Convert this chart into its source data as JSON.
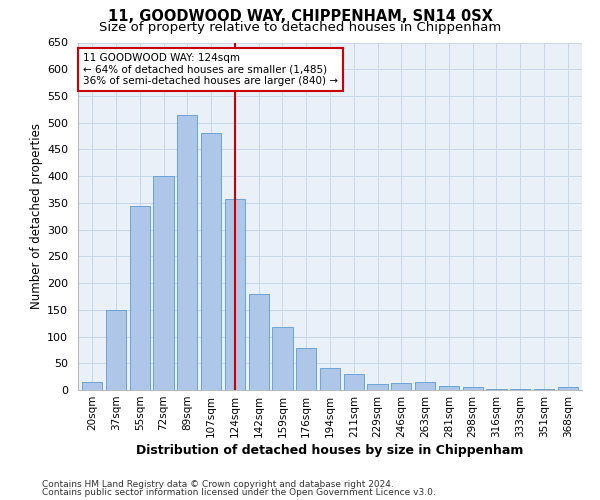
{
  "title1": "11, GOODWOOD WAY, CHIPPENHAM, SN14 0SX",
  "title2": "Size of property relative to detached houses in Chippenham",
  "xlabel": "Distribution of detached houses by size in Chippenham",
  "ylabel": "Number of detached properties",
  "categories": [
    "20sqm",
    "37sqm",
    "55sqm",
    "72sqm",
    "89sqm",
    "107sqm",
    "124sqm",
    "142sqm",
    "159sqm",
    "176sqm",
    "194sqm",
    "211sqm",
    "229sqm",
    "246sqm",
    "263sqm",
    "281sqm",
    "298sqm",
    "316sqm",
    "333sqm",
    "351sqm",
    "368sqm"
  ],
  "values": [
    15,
    150,
    345,
    400,
    515,
    480,
    357,
    180,
    117,
    78,
    42,
    30,
    12,
    14,
    15,
    7,
    5,
    2,
    1,
    1,
    5
  ],
  "bar_color": "#aec6e8",
  "bar_edge_color": "#5b9bd5",
  "property_size_label": "124sqm",
  "vline_color": "#cc0000",
  "annotation_line1": "11 GOODWOOD WAY: 124sqm",
  "annotation_line2": "← 64% of detached houses are smaller (1,485)",
  "annotation_line3": "36% of semi-detached houses are larger (840) →",
  "ylim": [
    0,
    650
  ],
  "yticks": [
    0,
    50,
    100,
    150,
    200,
    250,
    300,
    350,
    400,
    450,
    500,
    550,
    600,
    650
  ],
  "grid_color": "#c8d8e8",
  "background_color": "#eaf0f8",
  "footer1": "Contains HM Land Registry data © Crown copyright and database right 2024.",
  "footer2": "Contains public sector information licensed under the Open Government Licence v3.0."
}
